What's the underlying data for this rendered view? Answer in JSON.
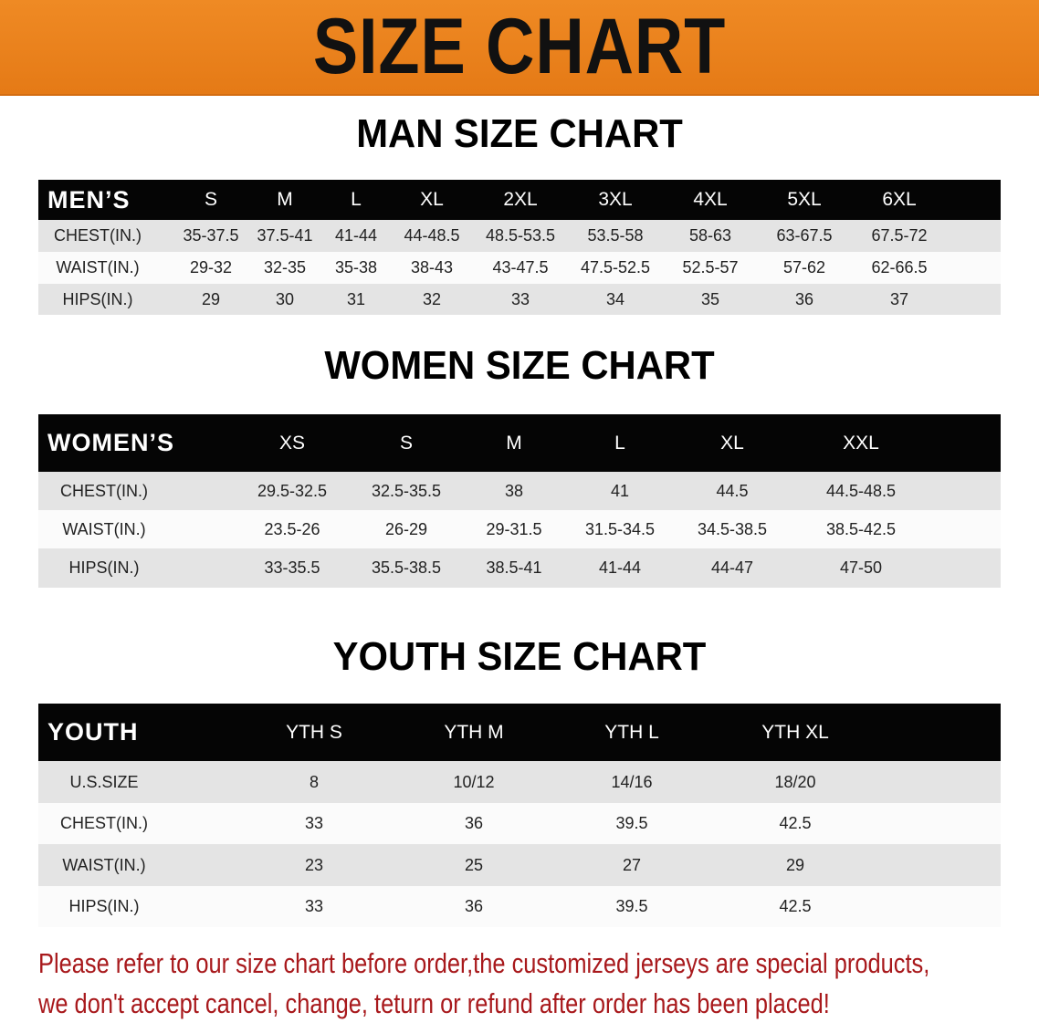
{
  "banner": {
    "title": "SIZE CHART",
    "color": "#e8801c"
  },
  "men": {
    "title": "MAN SIZE CHART",
    "header": [
      "MEN’S",
      "S",
      "M",
      "L",
      "XL",
      "2XL",
      "3XL",
      "4XL",
      "5XL",
      "6XL"
    ],
    "rows": [
      [
        "CHEST(IN.)",
        "35-37.5",
        "37.5-41",
        "41-44",
        "44-48.5",
        "48.5-53.5",
        "53.5-58",
        "58-63",
        "63-67.5",
        "67.5-72"
      ],
      [
        "WAIST(IN.)",
        "29-32",
        "32-35",
        "35-38",
        "38-43",
        "43-47.5",
        "47.5-52.5",
        "52.5-57",
        "57-62",
        "62-66.5"
      ],
      [
        "HIPS(IN.)",
        "29",
        "30",
        "31",
        "32",
        "33",
        "34",
        "35",
        "36",
        "37"
      ]
    ]
  },
  "women": {
    "title": "WOMEN SIZE CHART",
    "header": [
      "WOMEN’S",
      "XS",
      "S",
      "M",
      "L",
      "XL",
      "XXL"
    ],
    "rows": [
      [
        "CHEST(IN.)",
        "29.5-32.5",
        "32.5-35.5",
        "38",
        "41",
        "44.5",
        "44.5-48.5"
      ],
      [
        "WAIST(IN.)",
        "23.5-26",
        "26-29",
        "29-31.5",
        "31.5-34.5",
        "34.5-38.5",
        "38.5-42.5"
      ],
      [
        "HIPS(IN.)",
        "33-35.5",
        "35.5-38.5",
        "38.5-41",
        "41-44",
        "44-47",
        "47-50"
      ]
    ]
  },
  "youth": {
    "title": "YOUTH SIZE CHART",
    "header": [
      "YOUTH",
      "YTH S",
      "YTH M",
      "YTH L",
      "YTH XL"
    ],
    "rows": [
      [
        "U.S.SIZE",
        "8",
        "10/12",
        "14/16",
        "18/20"
      ],
      [
        "CHEST(IN.)",
        "33",
        "36",
        "39.5",
        "42.5"
      ],
      [
        "WAIST(IN.)",
        "23",
        "25",
        "27",
        "29"
      ],
      [
        "HIPS(IN.)",
        "33",
        "36",
        "39.5",
        "42.5"
      ]
    ]
  },
  "notice": {
    "line1": "Please refer to our size chart before order,the customized jerseys are special products,",
    "line2": "we don't accept cancel, change, teturn or refund after order has been placed!",
    "color": "#a8191c"
  }
}
